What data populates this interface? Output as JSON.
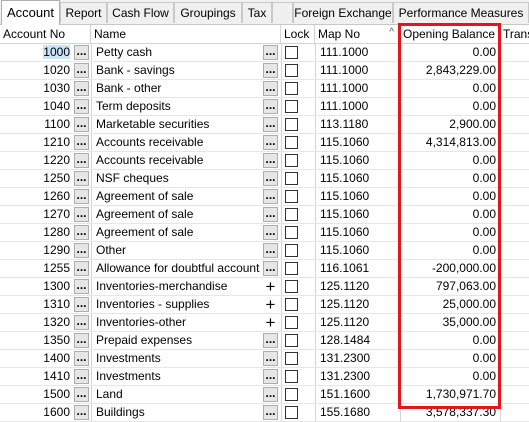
{
  "tabs": [
    "Account",
    "Report",
    "Cash Flow",
    "Groupings",
    "Tax",
    "Foreign Exchange",
    "Performance Measures"
  ],
  "columns": [
    "Account No",
    "Name",
    "Lock",
    "Map No",
    "Opening Balance",
    "Trans"
  ],
  "ellipsis": "...",
  "plus": "+",
  "sort_icon": "^",
  "rows": [
    {
      "acct": "1000",
      "name": "Petty cash",
      "map": "111.1000",
      "balance": "0.00",
      "plus": false
    },
    {
      "acct": "1020",
      "name": "Bank - savings",
      "map": "111.1000",
      "balance": "2,843,229.00",
      "plus": false
    },
    {
      "acct": "1030",
      "name": "Bank - other",
      "map": "111.1000",
      "balance": "0.00",
      "plus": false
    },
    {
      "acct": "1040",
      "name": "Term deposits",
      "map": "111.1000",
      "balance": "0.00",
      "plus": false
    },
    {
      "acct": "1100",
      "name": "Marketable securities",
      "map": "113.1180",
      "balance": "2,900.00",
      "plus": false
    },
    {
      "acct": "1210",
      "name": "Accounts receivable",
      "map": "115.1060",
      "balance": "4,314,813.00",
      "plus": false
    },
    {
      "acct": "1220",
      "name": "Accounts receivable",
      "map": "115.1060",
      "balance": "0.00",
      "plus": false
    },
    {
      "acct": "1250",
      "name": "NSF cheques",
      "map": "115.1060",
      "balance": "0.00",
      "plus": false
    },
    {
      "acct": "1260",
      "name": "Agreement of sale",
      "map": "115.1060",
      "balance": "0.00",
      "plus": false
    },
    {
      "acct": "1270",
      "name": "Agreement of sale",
      "map": "115.1060",
      "balance": "0.00",
      "plus": false
    },
    {
      "acct": "1280",
      "name": "Agreement of sale",
      "map": "115.1060",
      "balance": "0.00",
      "plus": false
    },
    {
      "acct": "1290",
      "name": "Other",
      "map": "115.1060",
      "balance": "0.00",
      "plus": false
    },
    {
      "acct": "1255",
      "name": "Allowance for doubtful account",
      "map": "116.1061",
      "balance": "-200,000.00",
      "plus": false
    },
    {
      "acct": "1300",
      "name": "Inventories-merchandise",
      "map": "125.1120",
      "balance": "797,063.00",
      "plus": true
    },
    {
      "acct": "1310",
      "name": "Inventories - supplies",
      "map": "125.1120",
      "balance": "25,000.00",
      "plus": true
    },
    {
      "acct": "1320",
      "name": "Inventories-other",
      "map": "125.1120",
      "balance": "35,000.00",
      "plus": true
    },
    {
      "acct": "1350",
      "name": "Prepaid expenses",
      "map": "128.1484",
      "balance": "0.00",
      "plus": false
    },
    {
      "acct": "1400",
      "name": "Investments",
      "map": "131.2300",
      "balance": "0.00",
      "plus": false
    },
    {
      "acct": "1410",
      "name": "Investments",
      "map": "131.2300",
      "balance": "0.00",
      "plus": false
    },
    {
      "acct": "1500",
      "name": "Land",
      "map": "151.1600",
      "balance": "1,730,971.70",
      "plus": false
    },
    {
      "acct": "1600",
      "name": "Buildings",
      "map": "155.1680",
      "balance": "3,578,337.30",
      "plus": false
    }
  ]
}
